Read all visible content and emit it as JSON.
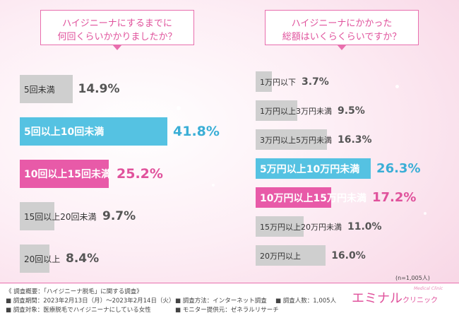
{
  "left_question": {
    "line1": "ハイジニーナにするまでに",
    "line2": "何回くらいかかりましたか？"
  },
  "right_question": {
    "line1": "ハイジニーナにかかった",
    "line2": "総額はいくらくらいですか？"
  },
  "colors": {
    "gray": "#cfcfcf",
    "blue": "#55c2e2",
    "pink": "#e85aa8",
    "accent": "#e0529c"
  },
  "chart_data": [
    {
      "type": "bar",
      "title": "ハイジニーナにするまでに何回くらいかかりましたか？",
      "categories": [
        "5回未満",
        "5回以上10回未満",
        "10回以上15回未満",
        "15回以上20回未満",
        "20回以上"
      ],
      "values": [
        14.9,
        41.8,
        25.2,
        9.7,
        8.4
      ],
      "value_labels": [
        "14.9%",
        "41.8%",
        "25.2%",
        "9.7%",
        "8.4%"
      ],
      "highlight": [
        "gray",
        "blue",
        "pink",
        "gray",
        "gray"
      ]
    },
    {
      "type": "bar",
      "title": "ハイジニーナにかかった総額はいくらくらいですか？",
      "categories": [
        "1万円以下",
        "1万円以上3万円未満",
        "3万円以上5万円未満",
        "5万円以上10万円未満",
        "10万円以上15万円未満",
        "15万円以上20万円未満",
        "20万円以上"
      ],
      "values": [
        3.7,
        9.5,
        16.3,
        26.3,
        17.2,
        11.0,
        16.0
      ],
      "value_labels": [
        "3.7%",
        "9.5%",
        "16.3%",
        "26.3%",
        "17.2%",
        "11.0%",
        "16.0%"
      ],
      "highlight": [
        "gray",
        "gray",
        "gray",
        "blue",
        "pink",
        "gray",
        "gray"
      ]
    }
  ],
  "sample_size": "(n=1,005人)",
  "footer": {
    "overview": "《 調査概要：「ハイジニーナ脱毛」に関する調査》",
    "period": "■ 調査期間：2023年2月13日（月）〜2023年2月14日（火）",
    "target": "■ 調査対象：医療脱毛でハイジニーナにしている女性",
    "method": "■ 調査方法：インターネット調査",
    "people": "■ 調査人数：1,005人",
    "provider": "■ モニター提供元：ゼネラルリサーチ"
  },
  "logo": {
    "main": "エミナル",
    "sub": "クリニック",
    "tag": "Medical Clinic"
  }
}
